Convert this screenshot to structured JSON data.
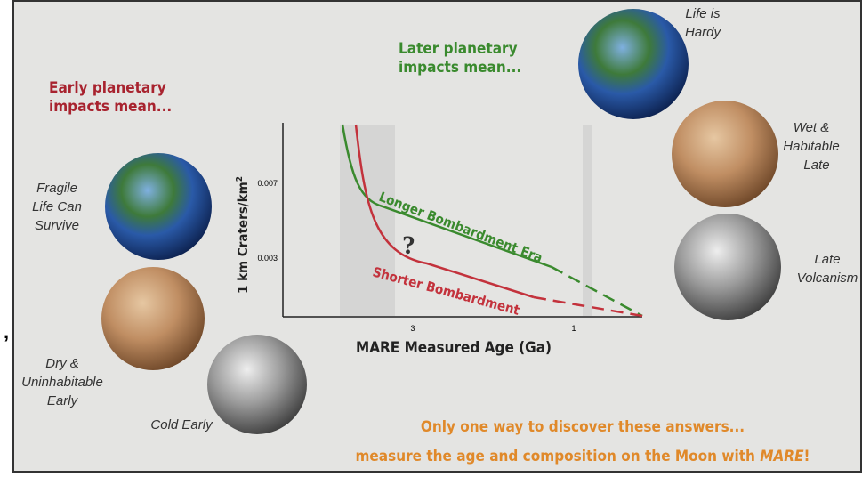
{
  "left": {
    "heading": [
      "Early planetary",
      "impacts mean..."
    ],
    "labels": [
      [
        "Fragile",
        "Life Can",
        "Survive"
      ],
      [
        "Dry &",
        "Uninhabitable",
        "Early"
      ],
      [
        "Cold Early"
      ]
    ]
  },
  "right": {
    "heading": [
      "Later planetary",
      "impacts mean..."
    ],
    "labels": [
      [
        "Life is",
        "Hardy"
      ],
      [
        "Wet &",
        "Habitable",
        "Late"
      ],
      [
        "Late",
        "Volcanism"
      ]
    ]
  },
  "plot": {
    "y_label": "1 km Craters/km",
    "y_label_sup": "2",
    "y_ticks": [
      "0.007",
      "0.003"
    ],
    "x_ticks": [
      "3",
      "1"
    ],
    "x_label": "MARE Measured Age (Ga)",
    "longer": "Longer Bombardment Era",
    "shorter": "Shorter Bombardment",
    "question": "?"
  },
  "footer": {
    "line1": "Only one way to discover these answers...",
    "line2": "measure the age and composition on the Moon with ",
    "line2_emph": "MARE",
    "line2_end": "!"
  },
  "stray": ","
}
